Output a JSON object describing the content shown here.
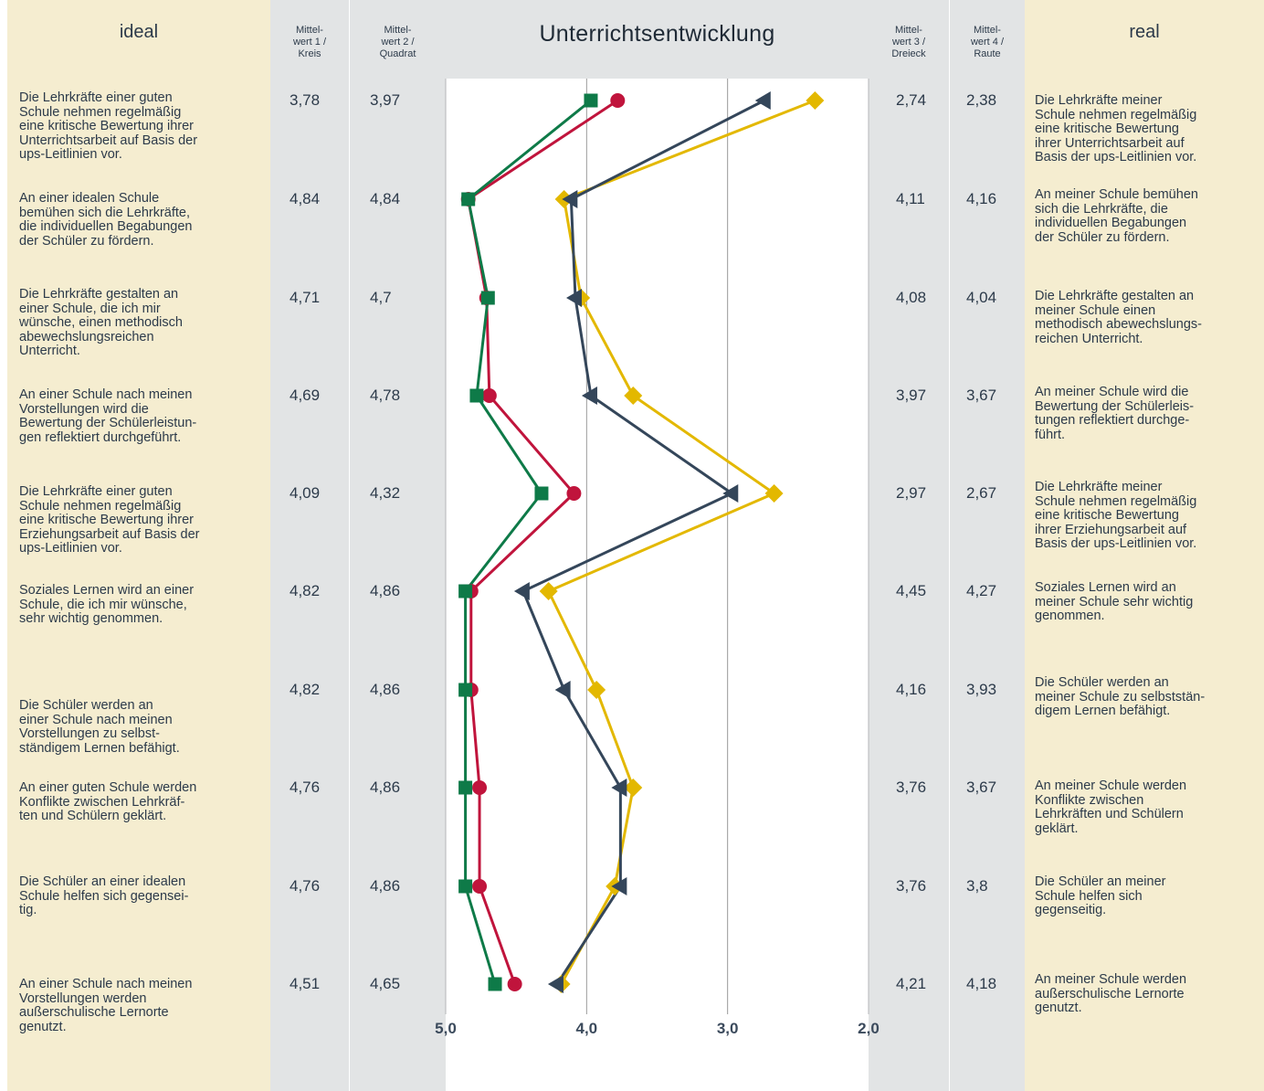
{
  "headers": {
    "ideal": "ideal",
    "m1": [
      "Mittel-",
      "wert 1 /",
      "Kreis"
    ],
    "m2": [
      "Mittel-",
      "wert 2 /",
      "Quadrat"
    ],
    "title": "Unterrichtsentwicklung",
    "m3": [
      "Mittel-",
      "wert 3 /",
      "Dreieck"
    ],
    "m4": [
      "Mittel-",
      "wert 4 /",
      "Raute"
    ],
    "real": "real"
  },
  "ideal_statements": [
    [
      "Die Lehrkräfte einer guten",
      "Schule nehmen regelmäßig",
      "eine kritische Bewertung ihrer",
      "Unterrichtsarbeit auf Basis der",
      "ups-Leitlinien vor."
    ],
    [
      "An einer idealen Schule",
      "bemühen sich die Lehrkräfte,",
      "die individuellen Begabungen",
      "der Schüler zu fördern."
    ],
    [
      "Die Lehrkräfte gestalten an",
      "einer Schule, die ich mir",
      "wünsche, einen methodisch",
      "abewechslungsreichen",
      "Unterricht."
    ],
    [
      "An einer Schule nach meinen",
      "Vorstellungen wird die",
      "Bewertung der Schülerleistun-",
      "gen reflektiert durchgeführt."
    ],
    [
      "Die Lehrkräfte einer guten",
      "Schule nehmen regelmäßig",
      "eine kritische Bewertung ihrer",
      "Erziehungsarbeit auf Basis der",
      "ups-Leitlinien vor."
    ],
    [
      "Soziales Lernen wird an einer",
      "Schule, die ich mir wünsche,",
      "sehr wichtig genommen."
    ],
    [
      "Die Schüler werden an",
      "einer Schule nach meinen",
      "Vorstellungen zu selbst-",
      "ständigem Lernen befähigt."
    ],
    [
      "An einer guten Schule werden",
      "Konflikte zwischen Lehrkräf-",
      "ten und Schülern geklärt."
    ],
    [
      "Die Schüler an einer idealen",
      "Schule helfen sich gegensei-",
      "tig."
    ],
    [
      "An einer Schule nach meinen",
      "Vorstellungen werden",
      "außerschulische Lernorte",
      "genutzt."
    ]
  ],
  "real_statements": [
    [
      "Die Lehrkräfte meiner",
      "Schule nehmen regelmäßig",
      "eine kritische Bewertung",
      "ihrer Unterrichtsarbeit auf",
      "Basis der ups-Leitlinien vor."
    ],
    [
      "An meiner Schule bemühen",
      "sich die Lehrkräfte, die",
      "individuellen Begabungen",
      "der Schüler zu fördern."
    ],
    [
      "Die Lehrkräfte gestalten an",
      "meiner Schule einen",
      "methodisch abewechslungs-",
      "reichen Unterricht."
    ],
    [
      "An meiner Schule wird die",
      "Bewertung der Schülerleis-",
      "tungen reflektiert durchge-",
      "führt."
    ],
    [
      "Die Lehrkräfte meiner",
      "Schule nehmen regelmäßig",
      "eine kritische Bewertung",
      "ihrer Erziehungsarbeit auf",
      "Basis der ups-Leitlinien vor."
    ],
    [
      "Soziales Lernen wird an",
      "meiner Schule sehr wichtig",
      "genommen."
    ],
    [
      "Die Schüler werden an",
      "meiner Schule zu selbststän-",
      "digem Lernen befähigt."
    ],
    [
      "An meiner Schule werden",
      "Konflikte zwischen",
      "Lehrkräften und Schülern",
      "geklärt."
    ],
    [
      "Die Schüler an meiner",
      "Schule helfen sich",
      "gegenseitig."
    ],
    [
      "An meiner Schule werden",
      "außerschulische Lernorte",
      "genutzt."
    ]
  ],
  "chart_data": {
    "type": "line",
    "title": "Unterrichtsentwicklung",
    "orientation": "vertical-profile",
    "x_axis": {
      "min": 2.0,
      "max": 5.0,
      "reversed": true,
      "ticks": [
        "5,0",
        "4,0",
        "3,0",
        "2,0"
      ],
      "tick_values": [
        5.0,
        4.0,
        3.0,
        2.0
      ]
    },
    "grid": true,
    "series": [
      {
        "name": "Mittelwert 1 / Kreis",
        "key": "m1",
        "marker": "circle",
        "color": "#c0143c",
        "labels": [
          "3,78",
          "4,84",
          "4,71",
          "4,69",
          "4,09",
          "4,82",
          "4,82",
          "4,76",
          "4,76",
          "4,51"
        ],
        "values": [
          3.78,
          4.84,
          4.71,
          4.69,
          4.09,
          4.82,
          4.82,
          4.76,
          4.76,
          4.51
        ]
      },
      {
        "name": "Mittelwert 2 / Quadrat",
        "key": "m2",
        "marker": "square",
        "color": "#0e7a48",
        "labels": [
          "3,97",
          "4,84",
          "4,7",
          "4,78",
          "4,32",
          "4,86",
          "4,86",
          "4,86",
          "4,86",
          "4,65"
        ],
        "values": [
          3.97,
          4.84,
          4.7,
          4.78,
          4.32,
          4.86,
          4.86,
          4.86,
          4.86,
          4.65
        ]
      },
      {
        "name": "Mittelwert 3 / Dreieck",
        "key": "m3",
        "marker": "triangle",
        "color": "#34465a",
        "labels": [
          "2,74",
          "4,11",
          "4,08",
          "3,97",
          "2,97",
          "4,45",
          "4,16",
          "3,76",
          "3,76",
          "4,21"
        ],
        "values": [
          2.74,
          4.11,
          4.08,
          3.97,
          2.97,
          4.45,
          4.16,
          3.76,
          3.76,
          4.21
        ]
      },
      {
        "name": "Mittelwert 4 / Raute",
        "key": "m4",
        "marker": "diamond",
        "color": "#e3b800",
        "labels": [
          "2,38",
          "4,16",
          "4,04",
          "3,67",
          "2,67",
          "4,27",
          "3,93",
          "3,67",
          "3,8",
          "4,18"
        ],
        "values": [
          2.38,
          4.16,
          4.04,
          3.67,
          2.67,
          4.27,
          3.93,
          3.67,
          3.8,
          4.18
        ]
      }
    ]
  }
}
